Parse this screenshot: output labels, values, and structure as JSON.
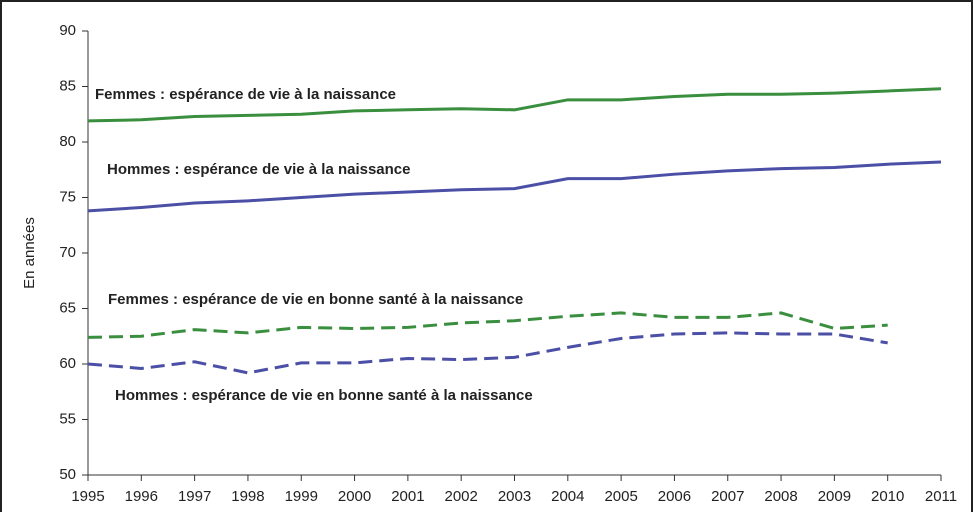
{
  "chart_data": {
    "type": "line",
    "y_label": "En années",
    "x": [
      1995,
      1996,
      1997,
      1998,
      1999,
      2000,
      2001,
      2002,
      2003,
      2004,
      2005,
      2006,
      2007,
      2008,
      2009,
      2010,
      2011
    ],
    "series": [
      {
        "name": "Femmes : espérance de vie à la naissance",
        "color": "#3a8f3f",
        "dashed": false,
        "values": [
          81.9,
          82.0,
          82.3,
          82.4,
          82.5,
          82.8,
          82.9,
          83.0,
          82.9,
          83.8,
          83.8,
          84.1,
          84.3,
          84.3,
          84.4,
          84.6,
          84.8
        ]
      },
      {
        "name": "Hommes : espérance de vie à la naissance",
        "color": "#4b4fa6",
        "dashed": false,
        "values": [
          73.8,
          74.1,
          74.5,
          74.7,
          75.0,
          75.3,
          75.5,
          75.7,
          75.8,
          76.7,
          76.7,
          77.1,
          77.4,
          77.6,
          77.7,
          78.0,
          78.2
        ]
      },
      {
        "name": "Femmes : espérance de vie en bonne santé à la naissance",
        "color": "#3a8f3f",
        "dashed": true,
        "values": [
          62.4,
          62.5,
          63.1,
          62.8,
          63.3,
          63.2,
          63.3,
          63.7,
          63.9,
          64.3,
          64.6,
          64.2,
          64.2,
          64.6,
          63.2,
          63.5,
          null
        ]
      },
      {
        "name": "Hommes : espérance de vie en bonne santé à la naissance",
        "color": "#4b4fa6",
        "dashed": true,
        "values": [
          60.0,
          59.6,
          60.2,
          59.2,
          60.1,
          60.1,
          60.5,
          60.4,
          60.6,
          61.5,
          62.3,
          62.7,
          62.8,
          62.7,
          62.7,
          61.9,
          null
        ]
      }
    ],
    "xlim": [
      1995,
      2011
    ],
    "xticks": [
      1995,
      1996,
      1997,
      1998,
      1999,
      2000,
      2001,
      2002,
      2003,
      2004,
      2005,
      2006,
      2007,
      2008,
      2009,
      2010,
      2011
    ],
    "ylim": [
      50,
      90
    ],
    "yticks": [
      50,
      55,
      60,
      65,
      70,
      75,
      80,
      85,
      90
    ],
    "grid": false
  }
}
